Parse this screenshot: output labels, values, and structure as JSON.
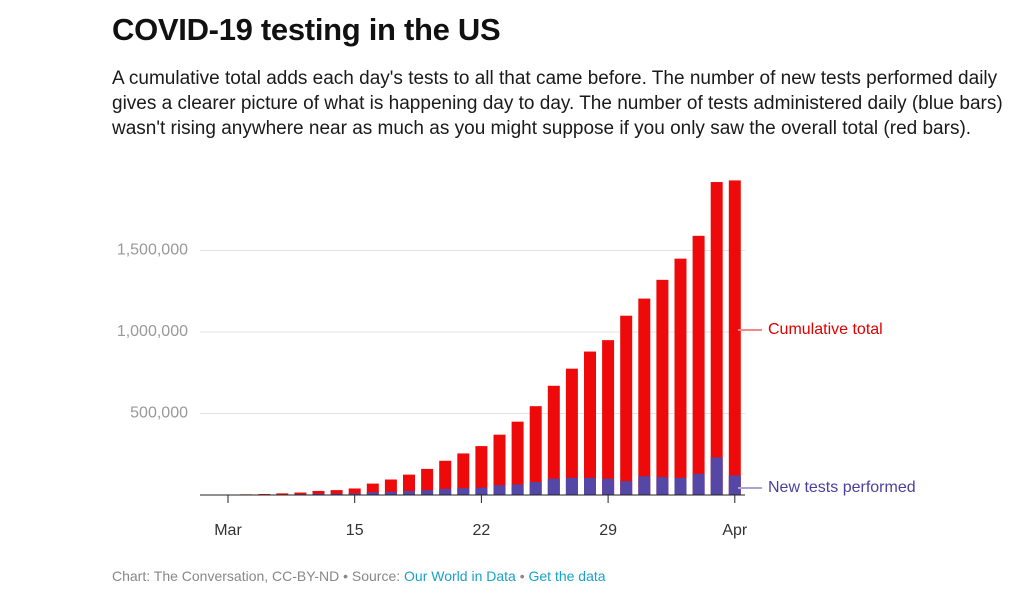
{
  "chart_data": {
    "type": "bar",
    "title": "COVID-19 testing in the US",
    "subtitle": "A cumulative total adds each day's tests to all that came before. The number of new tests performed daily gives a clearer picture of what is happening day to day. The number of tests administered daily (blue bars) wasn't rising anywhere near as much as you might suppose if you only saw the overall total (red bars).",
    "categories": [
      "Mar",
      null,
      null,
      null,
      null,
      null,
      null,
      "15",
      null,
      null,
      null,
      null,
      null,
      null,
      "22",
      null,
      null,
      null,
      null,
      null,
      null,
      "29",
      null,
      null,
      null,
      null,
      null,
      null,
      "Apr"
    ],
    "series": [
      {
        "name": "Cumulative total",
        "color": "#ee0a0a",
        "label_color": "#e00000",
        "line_color": "#f08a8a",
        "values": [
          2000,
          4000,
          6000,
          10000,
          15000,
          25000,
          30000,
          40000,
          70000,
          95000,
          125000,
          160000,
          210000,
          255000,
          300000,
          370000,
          450000,
          545000,
          670000,
          775000,
          880000,
          950000,
          1100000,
          1205000,
          1320000,
          1450000,
          1590000,
          1920000,
          1930000
        ]
      },
      {
        "name": "New tests performed",
        "color": "#5447a6",
        "label_color": "#4a3f9e",
        "line_color": "#a9a3d6",
        "values": [
          500,
          1000,
          1500,
          3000,
          5000,
          8000,
          8000,
          10000,
          18000,
          20000,
          25000,
          30000,
          38000,
          42000,
          45000,
          60000,
          65000,
          80000,
          100000,
          105000,
          105000,
          100000,
          85000,
          115000,
          110000,
          105000,
          130000,
          230000,
          120000
        ]
      }
    ],
    "ylim": [
      0,
      2000000
    ],
    "yticks": [
      {
        "value": 500000,
        "label": "500,000"
      },
      {
        "value": 1000000,
        "label": "1,000,000"
      },
      {
        "value": 1500000,
        "label": "1,500,000"
      }
    ],
    "grid": true,
    "source": {
      "prefix": "Chart: The Conversation, CC-BY-ND • Source: ",
      "link": "Our World in Data",
      "separator": " • ",
      "data_link": "Get the data"
    }
  }
}
